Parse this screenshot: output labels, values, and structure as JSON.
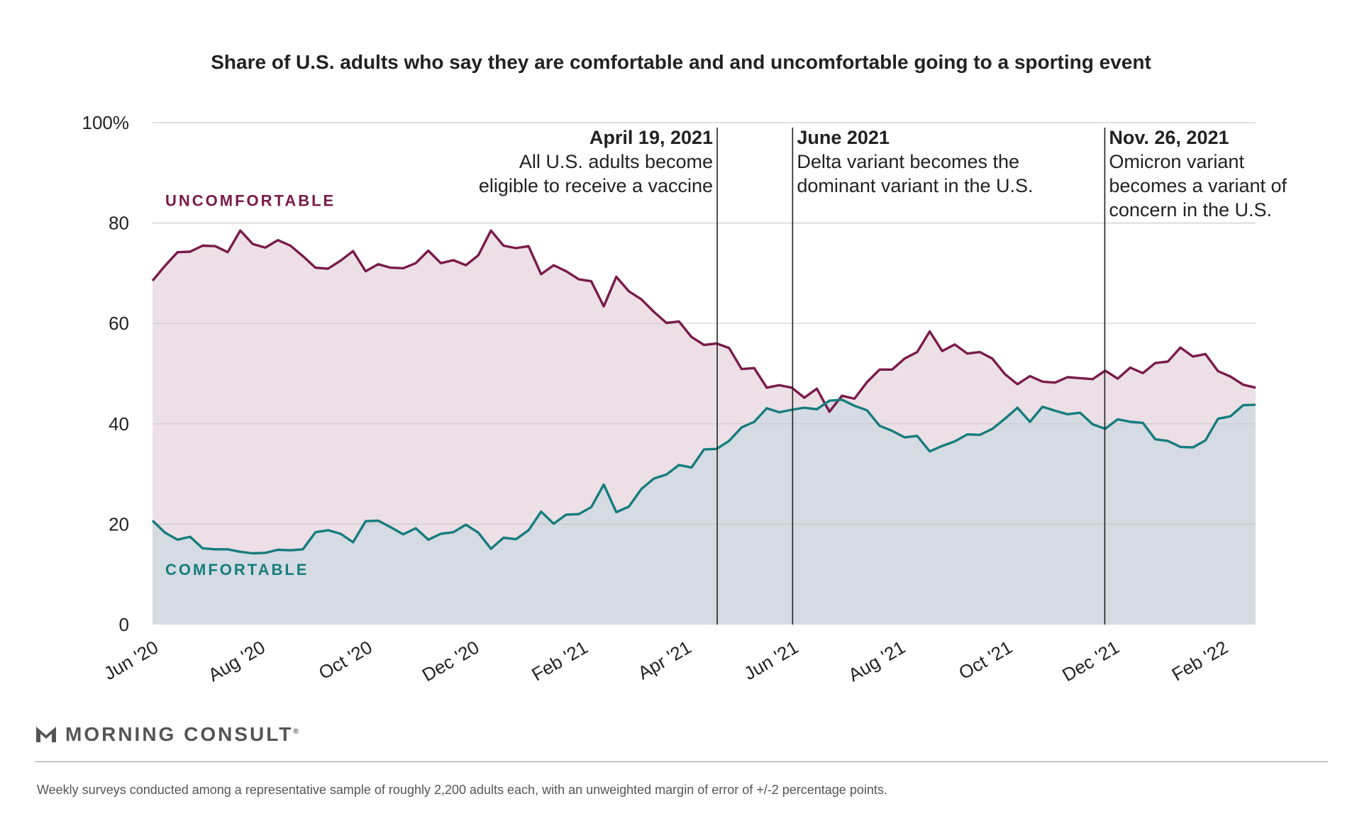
{
  "header": {
    "title": "Share of U.S. adults who say they are comfortable and and uncomfortable going to a sporting event"
  },
  "colors": {
    "uncomfortable_line": "#7a1a4a",
    "uncomfortable_fill": "#ecdfe6",
    "comfortable_line": "#157d7d",
    "comfortable_fill": "#d5dbe2",
    "gridline": "#c8c8c8",
    "annotation_line": "#222222"
  },
  "chart_data": {
    "type": "area",
    "title": "Share of U.S. adults who say they are comfortable and and uncomfortable going to a sporting event",
    "xlabel": "",
    "ylabel": "",
    "ylim": [
      0,
      100
    ],
    "y_ticks": [
      "100%",
      "80",
      "60",
      "40",
      "20",
      "0"
    ],
    "y_tick_values": [
      100,
      80,
      60,
      40,
      20,
      0
    ],
    "x_start": "2020-06-01",
    "x_end": "2022-02-20",
    "x_ticks": [
      {
        "label": "Jun '20",
        "date": "2020-06-01"
      },
      {
        "label": "Aug '20",
        "date": "2020-08-01"
      },
      {
        "label": "Oct '20",
        "date": "2020-10-01"
      },
      {
        "label": "Dec '20",
        "date": "2020-12-01"
      },
      {
        "label": "Feb '21",
        "date": "2021-02-01"
      },
      {
        "label": "Apr '21",
        "date": "2021-04-01"
      },
      {
        "label": "Jun '21",
        "date": "2021-06-01"
      },
      {
        "label": "Aug '21",
        "date": "2021-08-01"
      },
      {
        "label": "Oct '21",
        "date": "2021-10-01"
      },
      {
        "label": "Dec '21",
        "date": "2021-12-01"
      },
      {
        "label": "Feb '22",
        "date": "2022-02-01"
      }
    ],
    "grid": true,
    "series": [
      {
        "name": "UNCOMFORTABLE",
        "color": "#7a1a4a",
        "values": [
          68.5,
          71.5,
          74.2,
          74.3,
          75.5,
          75.4,
          74.2,
          78.5,
          75.8,
          75.1,
          76.6,
          75.5,
          73.4,
          71.1,
          70.9,
          72.5,
          74.4,
          70.4,
          71.8,
          71.1,
          71.0,
          72.0,
          74.5,
          72.0,
          72.6,
          71.6,
          73.6,
          78.5,
          75.5,
          75.0,
          75.4,
          69.8,
          71.6,
          70.4,
          68.8,
          68.4,
          63.4,
          69.3,
          66.4,
          64.8,
          62.3,
          60.1,
          60.4,
          57.3,
          55.7,
          56.0,
          55.1,
          50.9,
          51.1,
          47.2,
          47.7,
          47.2,
          45.2,
          47.0,
          42.4,
          45.6,
          45.0,
          48.3,
          50.8,
          50.8,
          53.0,
          54.3,
          58.4,
          54.5,
          55.8,
          54.0,
          54.3,
          53.0,
          49.9,
          47.9,
          49.5,
          48.4,
          48.2,
          49.3,
          49.1,
          48.9,
          50.6,
          49.0,
          51.2,
          50.1,
          52.1,
          52.4,
          55.2,
          53.4,
          53.9,
          50.5,
          49.4,
          47.8,
          47.2
        ]
      },
      {
        "name": "COMFORTABLE",
        "color": "#157d7d",
        "values": [
          20.7,
          18.3,
          16.9,
          17.5,
          15.2,
          15.0,
          15.0,
          14.5,
          14.2,
          14.3,
          14.9,
          14.8,
          15.0,
          18.4,
          18.8,
          18.1,
          16.4,
          20.6,
          20.7,
          19.4,
          18.0,
          19.2,
          16.9,
          18.1,
          18.4,
          19.9,
          18.3,
          15.1,
          17.3,
          17.0,
          18.8,
          22.5,
          20.1,
          21.9,
          22.0,
          23.4,
          27.9,
          22.4,
          23.5,
          27.0,
          29.1,
          29.9,
          31.8,
          31.3,
          34.9,
          35.0,
          36.6,
          39.3,
          40.4,
          43.1,
          42.3,
          42.8,
          43.2,
          42.9,
          44.6,
          44.8,
          43.6,
          42.7,
          39.6,
          38.6,
          37.3,
          37.6,
          34.5,
          35.6,
          36.5,
          37.9,
          37.8,
          39.0,
          41.0,
          43.2,
          40.4,
          43.4,
          42.6,
          41.9,
          42.2,
          39.9,
          39.0,
          40.9,
          40.4,
          40.2,
          36.9,
          36.6,
          35.4,
          35.3,
          36.7,
          41.0,
          41.5,
          43.7,
          43.8
        ]
      }
    ],
    "series_labels": [
      {
        "text": "UNCOMFORTABLE",
        "y": 84.5
      },
      {
        "text": "COMFORTABLE",
        "y": 11
      }
    ],
    "annotations": [
      {
        "date": "2021-04-19",
        "title": "April 19, 2021",
        "lines": [
          "All U.S. adults become",
          "eligible to receive a vaccine"
        ],
        "side": "left"
      },
      {
        "date": "2021-06-01",
        "title": "June 2021",
        "lines": [
          "Delta variant becomes the",
          "dominant variant in the U.S."
        ],
        "side": "right"
      },
      {
        "date": "2021-11-26",
        "title": "Nov. 26, 2021",
        "lines": [
          "Omicron variant",
          "becomes a variant of",
          "concern in the U.S."
        ],
        "side": "right"
      }
    ]
  },
  "brand": {
    "name": "MORNING CONSULT",
    "registered": "®",
    "logo_icon": "morning-consult-logo-icon"
  },
  "footer": {
    "note": "Weekly surveys conducted among a representative sample of roughly 2,200 adults each, with an unweighted margin of error of +/-2 percentage points."
  }
}
